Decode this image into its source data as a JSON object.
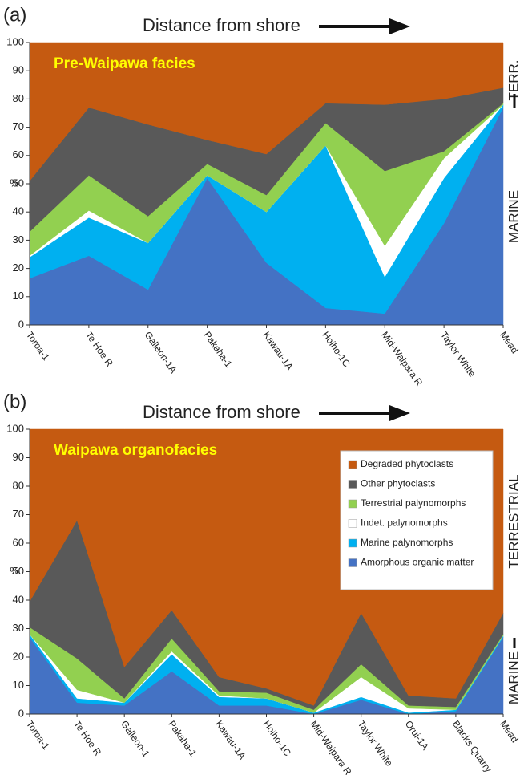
{
  "chart_data": [
    {
      "type": "area",
      "stacked": true,
      "panel_label": "(a)",
      "xlabel": "Distance from shore",
      "title": "Pre-Waipawa facies",
      "ylabel": "%",
      "categories": [
        "Toroa-1",
        "Te Hoe R",
        "Galleon-1A",
        "Pakaha-1",
        "Kawau-1A",
        "Hoiho-1C",
        "Mid-Waipara R",
        "Taylor White",
        "Mead"
      ],
      "series": [
        {
          "name": "Amorphous organic matter",
          "color": "#4472c4",
          "values": [
            16.5,
            24.5,
            12.5,
            52,
            22,
            6,
            4,
            36,
            77
          ]
        },
        {
          "name": "Marine palynomorphs",
          "color": "#00b0f0",
          "values": [
            7.5,
            13.5,
            16.5,
            1,
            18,
            57.5,
            13,
            16,
            1
          ]
        },
        {
          "name": "Indet. palynomorphs",
          "color": "#ffffff",
          "values": [
            0.5,
            2.5,
            0,
            0,
            0,
            0,
            11,
            7,
            0
          ]
        },
        {
          "name": "Terrestrial palynomorphs",
          "color": "#92d050",
          "values": [
            8.5,
            12.5,
            9.5,
            4,
            6,
            8,
            26.5,
            2.5,
            0.5
          ]
        },
        {
          "name": "Other phytoclasts",
          "color": "#595959",
          "values": [
            18,
            24,
            32.5,
            8.5,
            14.5,
            7,
            23.5,
            18.5,
            5.5
          ]
        },
        {
          "name": "Degraded phytoclasts",
          "color": "#c55a11",
          "values": [
            49,
            23,
            29,
            34.5,
            39.5,
            21.5,
            22,
            20,
            16
          ]
        }
      ],
      "ylim": [
        0,
        100
      ],
      "yticks": [
        0,
        10,
        20,
        30,
        40,
        50,
        60,
        70,
        80,
        90,
        100
      ],
      "legend": false,
      "side_labels": [
        "TERR.",
        "MARINE"
      ]
    },
    {
      "type": "area",
      "stacked": true,
      "panel_label": "(b)",
      "xlabel": "Distance from shore",
      "title": "Waipawa organofacies",
      "ylabel": "%",
      "categories": [
        "Toroa-1",
        "Te Hoe R",
        "Galleon-1",
        "Pakaha-1",
        "Kawau-1A",
        "Hoiho-1C",
        "Mid-Waipara R",
        "Taylor White",
        "Orui-1A",
        "Blacks Quarry",
        "Mead"
      ],
      "series": [
        {
          "name": "Amorphous organic matter",
          "color": "#4472c4",
          "values": [
            27,
            4,
            3,
            15,
            3,
            3,
            0,
            5,
            0,
            1,
            27
          ]
        },
        {
          "name": "Marine palynomorphs",
          "color": "#00b0f0",
          "values": [
            1,
            1.5,
            1,
            6,
            3,
            2.5,
            0.5,
            1,
            0.5,
            0.5,
            0.5
          ]
        },
        {
          "name": "Indet. palynomorphs",
          "color": "#ffffff",
          "values": [
            0,
            3,
            0,
            1,
            0.5,
            0,
            0,
            7,
            1.5,
            0,
            0
          ]
        },
        {
          "name": "Terrestrial palynomorphs",
          "color": "#92d050",
          "values": [
            2.5,
            11,
            1.5,
            4.5,
            1.5,
            2,
            1,
            4.5,
            1,
            1,
            0.5
          ]
        },
        {
          "name": "Other phytoclasts",
          "color": "#595959",
          "values": [
            9,
            48.5,
            11,
            10,
            5,
            1.5,
            1.5,
            18,
            3.5,
            3,
            7.5
          ]
        },
        {
          "name": "Degraded phytoclasts",
          "color": "#c55a11",
          "values": [
            60.5,
            32,
            83.5,
            63.5,
            87,
            91,
            97,
            64.5,
            93.5,
            94.5,
            64.5
          ]
        }
      ],
      "ylim": [
        0,
        100
      ],
      "yticks": [
        0,
        10,
        20,
        30,
        40,
        50,
        60,
        70,
        80,
        90,
        100
      ],
      "legend": "upper right",
      "side_labels": [
        "TERRESTRIAL",
        "MARINE"
      ]
    }
  ]
}
